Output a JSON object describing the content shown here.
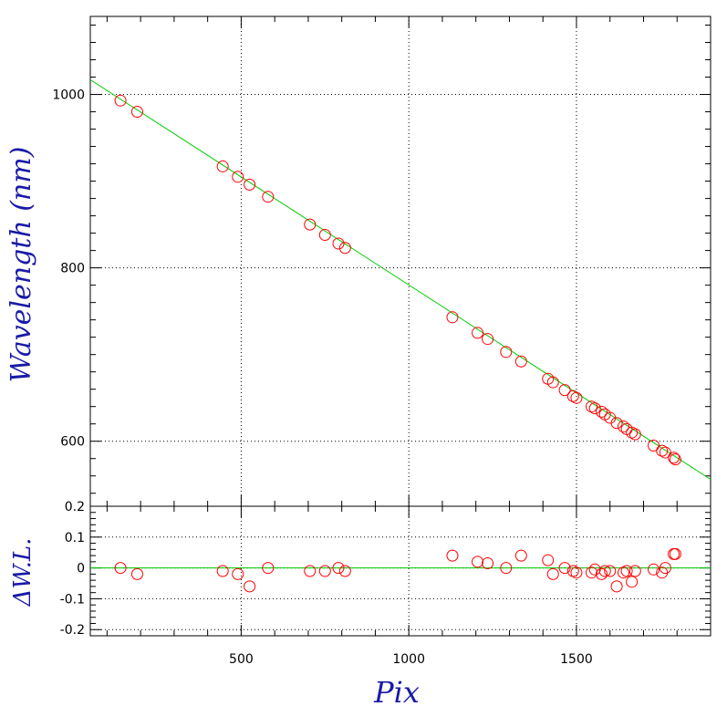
{
  "chart_data": [
    {
      "type": "scatter",
      "title": "",
      "xlabel": "",
      "ylabel": "Wavelength (nm)",
      "xlim": [
        50,
        1900
      ],
      "ylim": [
        525,
        1090
      ],
      "xticks": [
        500,
        1000,
        1500
      ],
      "yticks": [
        600,
        800,
        1000
      ],
      "ytick_labels": [
        "600",
        "800",
        "1000"
      ],
      "grid": true,
      "colors": {
        "points": "#ff0000",
        "fit": "#00cc00",
        "label": "#1a1aa8"
      },
      "fit_line": {
        "x": [
          50,
          1900
        ],
        "y": [
          1017,
          556
        ]
      },
      "series": [
        {
          "x": [
            140,
            190,
            445,
            490,
            525,
            580,
            705,
            750,
            790,
            810,
            1130,
            1205,
            1235,
            1290,
            1335,
            1415,
            1430,
            1465,
            1490,
            1500,
            1545,
            1555,
            1575,
            1585,
            1600,
            1620,
            1640,
            1650,
            1665,
            1675,
            1730,
            1755,
            1765,
            1790,
            1795
          ],
          "y": [
            993,
            980,
            917,
            905,
            896,
            882,
            850,
            838,
            828,
            823,
            743,
            725,
            718,
            703,
            692,
            672,
            668,
            659,
            652,
            650,
            640,
            638,
            634,
            631,
            627,
            621,
            617,
            614,
            610,
            608,
            595,
            589,
            587,
            581,
            579
          ]
        }
      ]
    },
    {
      "type": "scatter",
      "title": "",
      "xlabel": "Pix",
      "ylabel": "ΔW.L.",
      "xlim": [
        50,
        1900
      ],
      "ylim": [
        -0.22,
        0.2
      ],
      "xticks": [
        500,
        1000,
        1500
      ],
      "xtick_labels": [
        "500",
        "1000",
        "1500"
      ],
      "yticks": [
        -0.2,
        -0.1,
        0,
        0.1,
        0.2
      ],
      "ytick_labels": [
        "-0.2",
        "-0.1",
        "0",
        "0.1",
        "0.2"
      ],
      "grid": true,
      "zero_line": 0,
      "series": [
        {
          "x": [
            140,
            190,
            445,
            490,
            525,
            580,
            705,
            750,
            790,
            810,
            1130,
            1205,
            1235,
            1290,
            1335,
            1415,
            1430,
            1465,
            1490,
            1500,
            1545,
            1555,
            1575,
            1585,
            1600,
            1620,
            1640,
            1650,
            1665,
            1675,
            1730,
            1755,
            1765,
            1790,
            1795
          ],
          "y": [
            0.0,
            -0.02,
            -0.01,
            -0.02,
            -0.06,
            0.0,
            -0.01,
            -0.01,
            0.0,
            -0.01,
            0.04,
            0.02,
            0.015,
            0.0,
            0.04,
            0.025,
            -0.02,
            0.0,
            -0.01,
            -0.015,
            -0.015,
            -0.005,
            -0.02,
            -0.01,
            -0.01,
            -0.06,
            -0.015,
            -0.01,
            -0.045,
            -0.01,
            -0.005,
            -0.015,
            0.0,
            0.045,
            0.045
          ]
        }
      ]
    }
  ]
}
